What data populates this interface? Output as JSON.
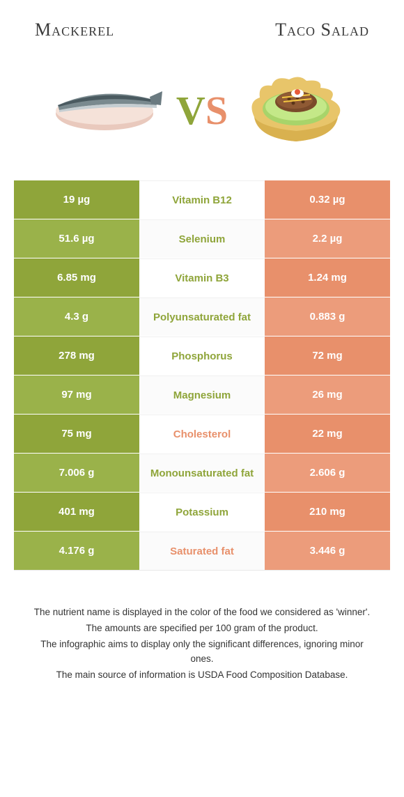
{
  "header": {
    "left": "Mackerel",
    "right": "Taco Salad"
  },
  "vs": {
    "v": "V",
    "s": "S"
  },
  "colors": {
    "left": "#8fa53a",
    "left_alt": "#9ab24a",
    "right": "#e8906b",
    "right_alt": "#ec9c7b",
    "text_dark": "#3a3a3a"
  },
  "rows": [
    {
      "left": "19 µg",
      "label": "Vitamin B12",
      "right": "0.32 µg",
      "winner": "left"
    },
    {
      "left": "51.6 µg",
      "label": "Selenium",
      "right": "2.2 µg",
      "winner": "left"
    },
    {
      "left": "6.85 mg",
      "label": "Vitamin B3",
      "right": "1.24 mg",
      "winner": "left"
    },
    {
      "left": "4.3 g",
      "label": "Polyunsaturated fat",
      "right": "0.883 g",
      "winner": "left"
    },
    {
      "left": "278 mg",
      "label": "Phosphorus",
      "right": "72 mg",
      "winner": "left"
    },
    {
      "left": "97 mg",
      "label": "Magnesium",
      "right": "26 mg",
      "winner": "left"
    },
    {
      "left": "75 mg",
      "label": "Cholesterol",
      "right": "22 mg",
      "winner": "right"
    },
    {
      "left": "7.006 g",
      "label": "Monounsaturated fat",
      "right": "2.606 g",
      "winner": "left"
    },
    {
      "left": "401 mg",
      "label": "Potassium",
      "right": "210 mg",
      "winner": "left"
    },
    {
      "left": "4.176 g",
      "label": "Saturated fat",
      "right": "3.446 g",
      "winner": "right"
    }
  ],
  "footer": {
    "l1": "The nutrient name is displayed in the color of the food we considered as 'winner'.",
    "l2": "The amounts are specified per 100 gram of the product.",
    "l3": "The infographic aims to display only the significant differences, ignoring minor ones.",
    "l4": "The main source of information is USDA Food Composition Database."
  }
}
